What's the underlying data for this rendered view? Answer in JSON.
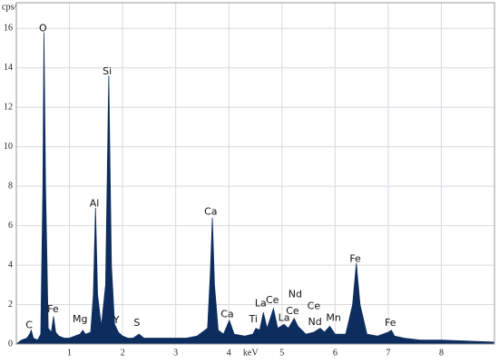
{
  "chart_data": {
    "type": "area",
    "y_label": "cps/eV",
    "x_label": "keV",
    "xlim": [
      0,
      9
    ],
    "ylim": [
      0,
      17.3
    ],
    "xticks": [
      1,
      2,
      3,
      4,
      5,
      6,
      7,
      8
    ],
    "yticks": [
      0,
      2,
      4,
      6,
      8,
      10,
      12,
      14,
      16
    ],
    "grid": true,
    "color": "#0d2d5e",
    "x": [
      0,
      0.1,
      0.2,
      0.25,
      0.28,
      0.32,
      0.4,
      0.46,
      0.5,
      0.52,
      0.55,
      0.6,
      0.66,
      0.7,
      0.74,
      0.8,
      0.9,
      1.0,
      1.1,
      1.2,
      1.25,
      1.3,
      1.4,
      1.45,
      1.49,
      1.53,
      1.6,
      1.68,
      1.74,
      1.79,
      1.85,
      1.92,
      2.0,
      2.1,
      2.2,
      2.31,
      2.4,
      2.6,
      2.8,
      3.0,
      3.2,
      3.4,
      3.6,
      3.65,
      3.69,
      3.73,
      3.8,
      3.9,
      4.01,
      4.1,
      4.3,
      4.45,
      4.51,
      4.58,
      4.65,
      4.72,
      4.84,
      4.92,
      5.04,
      5.12,
      5.23,
      5.3,
      5.45,
      5.6,
      5.72,
      5.8,
      5.9,
      6.0,
      6.2,
      6.33,
      6.4,
      6.47,
      6.6,
      6.8,
      7.0,
      7.06,
      7.12,
      7.3,
      7.6,
      8.0,
      8.5,
      9.0
    ],
    "values": [
      0,
      0.2,
      0.3,
      0.5,
      0.7,
      0.3,
      0.2,
      0.5,
      8,
      15.8,
      8,
      0.8,
      0.6,
      1.4,
      0.6,
      0.4,
      0.3,
      0.3,
      0.4,
      0.5,
      0.7,
      0.5,
      0.6,
      2.5,
      6.9,
      2.5,
      0.9,
      3,
      13.6,
      4,
      1.0,
      0.6,
      0.4,
      0.3,
      0.3,
      0.5,
      0.3,
      0.3,
      0.3,
      0.3,
      0.3,
      0.4,
      0.8,
      3.5,
      6.4,
      3,
      0.7,
      0.5,
      1.2,
      0.5,
      0.4,
      0.5,
      0.8,
      0.7,
      1.6,
      0.8,
      1.8,
      0.8,
      1.0,
      0.8,
      1.3,
      0.9,
      0.5,
      0.6,
      0.8,
      0.6,
      0.9,
      0.5,
      0.5,
      2,
      4.1,
      2,
      0.5,
      0.4,
      0.6,
      0.7,
      0.4,
      0.3,
      0.2,
      0.2,
      0.15,
      0.1
    ],
    "annotations": [
      {
        "text": "C",
        "x": 0.24,
        "y": 0.95
      },
      {
        "text": "O",
        "x": 0.5,
        "y": 16.0
      },
      {
        "text": "Fe",
        "x": 0.69,
        "y": 1.75
      },
      {
        "text": "Mg",
        "x": 1.2,
        "y": 1.25
      },
      {
        "text": "Al",
        "x": 1.47,
        "y": 7.1
      },
      {
        "text": "Si",
        "x": 1.71,
        "y": 13.8
      },
      {
        "text": "Y",
        "x": 1.88,
        "y": 1.2
      },
      {
        "text": "S",
        "x": 2.27,
        "y": 1.05
      },
      {
        "text": "Ca",
        "x": 3.66,
        "y": 6.7
      },
      {
        "text": "Ca",
        "x": 3.97,
        "y": 1.5
      },
      {
        "text": "Ti",
        "x": 4.46,
        "y": 1.25
      },
      {
        "text": "La",
        "x": 4.6,
        "y": 2.05
      },
      {
        "text": "Ce",
        "x": 4.82,
        "y": 2.2
      },
      {
        "text": "Nd",
        "x": 5.25,
        "y": 2.5
      },
      {
        "text": "La",
        "x": 5.04,
        "y": 1.3
      },
      {
        "text": "Ce",
        "x": 5.2,
        "y": 1.65
      },
      {
        "text": "Ce",
        "x": 5.6,
        "y": 1.9
      },
      {
        "text": "Nd",
        "x": 5.62,
        "y": 1.1
      },
      {
        "text": "Mn",
        "x": 5.97,
        "y": 1.3
      },
      {
        "text": "Fe",
        "x": 6.38,
        "y": 4.3
      },
      {
        "text": "Fe",
        "x": 7.04,
        "y": 1.05
      }
    ]
  }
}
